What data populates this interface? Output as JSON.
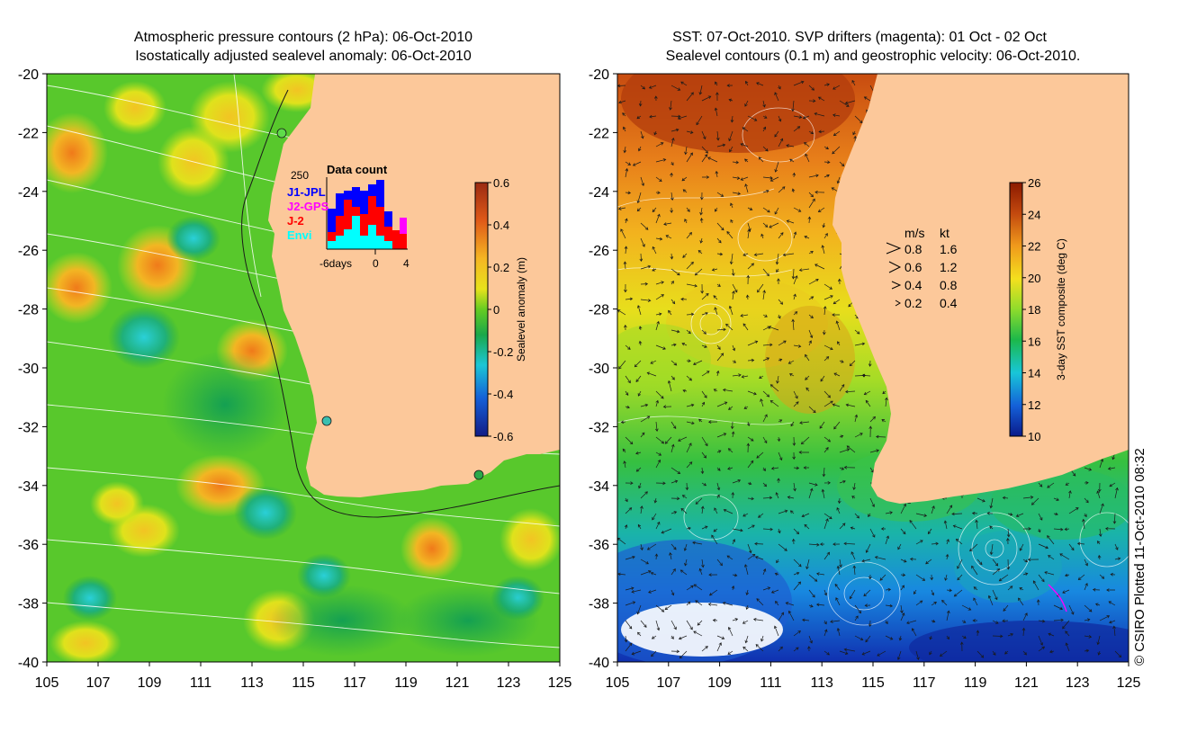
{
  "left_panel": {
    "title_line1": "Atmospheric pressure contours (2 hPa): 06-Oct-2010",
    "title_line2": "Isostatically adjusted sealevel anomaly: 06-Oct-2010",
    "lat_ticks": [
      "-20",
      "-22",
      "-24",
      "-26",
      "-28",
      "-30",
      "-32",
      "-34",
      "-36",
      "-38",
      "-40"
    ],
    "lon_ticks": [
      "105",
      "107",
      "109",
      "111",
      "113",
      "115",
      "117",
      "119",
      "121",
      "123",
      "125"
    ],
    "colorbar": {
      "label": "Sealevel anomaly (m)",
      "ticks": [
        "0.6",
        "0.4",
        "0.2",
        "0",
        "-0.2",
        "-0.4",
        "-0.6"
      ],
      "value_min": -0.6,
      "value_max": 0.6
    },
    "data_count": {
      "title": "Data count",
      "ymax_label": "250",
      "xlabel_left": "-6days",
      "xlabel_mid": "0",
      "xlabel_right": "4",
      "series": [
        {
          "name": "J1-JPL",
          "color": "#0000ff"
        },
        {
          "name": "J2-GPS",
          "color": "#ff00ff"
        },
        {
          "name": "J-2",
          "color": "#ff0000"
        },
        {
          "name": "Envi",
          "color": "#00ffff"
        }
      ]
    }
  },
  "right_panel": {
    "title_line1": "SST: 07-Oct-2010. SVP drifters (magenta): 01 Oct - 02 Oct",
    "title_line2": "Sealevel contours (0.1 m) and geostrophic velocity: 06-Oct-2010.",
    "lat_ticks": [
      "-20",
      "-22",
      "-24",
      "-26",
      "-28",
      "-30",
      "-32",
      "-34",
      "-36",
      "-38",
      "-40"
    ],
    "lon_ticks": [
      "105",
      "107",
      "109",
      "111",
      "113",
      "115",
      "117",
      "119",
      "121",
      "123",
      "125"
    ],
    "colorbar": {
      "label": "3-day SST composite (deg C)",
      "ticks": [
        "26",
        "24",
        "22",
        "20",
        "18",
        "16",
        "14",
        "12",
        "10"
      ],
      "value_min": 10,
      "value_max": 26
    },
    "velocity_legend": {
      "header_ms": "m/s",
      "header_kt": "kt",
      "rows": [
        {
          "ms": "0.8",
          "kt": "1.6"
        },
        {
          "ms": "0.6",
          "kt": "1.2"
        },
        {
          "ms": "0.4",
          "kt": "0.8"
        },
        {
          "ms": "0.2",
          "kt": "0.4"
        }
      ]
    }
  },
  "credit": "© CSIRO Plotted 11-Oct-2010 08:32",
  "colors": {
    "land": "#fcc89a",
    "sla_high": "#b2351c",
    "sla_low": "#1a2490",
    "sst_high": "#8b1a00",
    "sst_low": "#0a1a8a"
  }
}
